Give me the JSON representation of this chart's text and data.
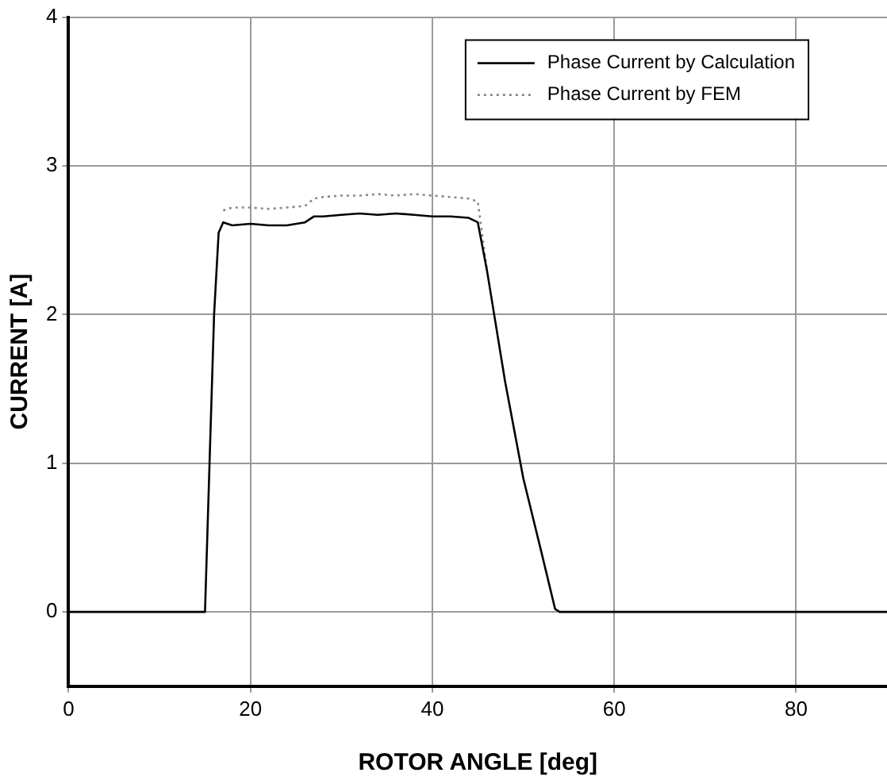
{
  "chart_data": {
    "type": "line",
    "xlabel": "ROTOR ANGLE [deg]",
    "ylabel": "CURRENT [A]",
    "xlim": [
      0,
      90
    ],
    "xticks": [
      0,
      20,
      40,
      60,
      80
    ],
    "ylim": [
      -0.5,
      4
    ],
    "yticks": [
      0,
      1,
      2,
      3,
      4
    ],
    "grid": true,
    "legend": "top right",
    "marker": "none",
    "series": [
      {
        "name": "Phase Current by Calculation",
        "color": "#000000",
        "line_style": "solid",
        "x": [
          0,
          15,
          15.5,
          16,
          16.5,
          17,
          18,
          20,
          22,
          24,
          26,
          27,
          28,
          30,
          32,
          34,
          36,
          38,
          40,
          42,
          44,
          45,
          46,
          48,
          50,
          52,
          53.5,
          54,
          60,
          70,
          80,
          90
        ],
        "values": [
          0,
          0,
          1,
          2,
          2.55,
          2.62,
          2.6,
          2.61,
          2.6,
          2.6,
          2.62,
          2.66,
          2.66,
          2.67,
          2.68,
          2.67,
          2.68,
          2.67,
          2.66,
          2.66,
          2.65,
          2.62,
          2.3,
          1.55,
          0.9,
          0.4,
          0.02,
          0,
          0,
          0,
          0,
          0
        ]
      },
      {
        "name": "Phase Current by FEM",
        "color": "#888888",
        "line_style": "dotted",
        "x": [
          17,
          18,
          20,
          22,
          24,
          26,
          27,
          28,
          30,
          32,
          34,
          36,
          38,
          40,
          42,
          44,
          45,
          46
        ],
        "values": [
          2.7,
          2.72,
          2.72,
          2.71,
          2.72,
          2.73,
          2.78,
          2.79,
          2.8,
          2.8,
          2.81,
          2.8,
          2.81,
          2.8,
          2.79,
          2.78,
          2.76,
          2.3
        ]
      }
    ]
  }
}
